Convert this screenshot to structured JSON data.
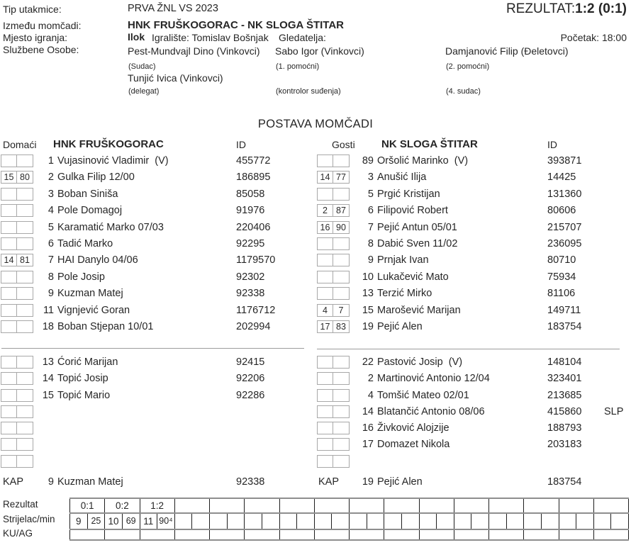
{
  "meta": {
    "labels": {
      "tip": "Tip utakmice:",
      "between": "Između momčadi:",
      "place": "Mjesto igranja:",
      "officials": "Službene Osobe:"
    },
    "tip_value": "PRVA ŽNL VS 2023",
    "teams_value": "HNK FRUŠKOGORAC - NK SLOGA ŠTITAR",
    "place_value": "Ilok",
    "stadium": "Igralište: Tomislav Bošnjak",
    "spectators_label": "Gledatelja:",
    "kickoff": "Početak: 18:00",
    "result_label": "REZULTAT:",
    "result_value": "1:2 (0:1)"
  },
  "officials": {
    "sudac_name": "Pest-Mundvajl Dino (Vinkovci)",
    "sudac_role": "(Sudac)",
    "pom1_name": "Sabo Igor (Vinkovci)",
    "pom1_role": "(1. pomoćni)",
    "pom2_name": "Damjanović Filip (Đeletovci)",
    "pom2_role": "(2. pomoćni)",
    "delegat_name": "Tunjić Ivica (Vinkovci)",
    "delegat_role": "(delegat)",
    "kontrolor_role": "(kontrolor suđenja)",
    "sudac4_role": "(4. sudac)"
  },
  "lineup": {
    "title": "POSTAVA MOMČADI",
    "home": {
      "side_label": "Domaći",
      "team_name": "HNK FRUŠKOGORAC",
      "id_label": "ID",
      "starters": [
        [
          "",
          "",
          "1",
          "Vujasinović Vladimir  (V)",
          "455772"
        ],
        [
          "15",
          "80",
          "2",
          "Gulka Filip 12/00",
          "186895"
        ],
        [
          "",
          "",
          "3",
          "Boban Siniša",
          "85058"
        ],
        [
          "",
          "",
          "4",
          "Pole Domagoj",
          "91976"
        ],
        [
          "",
          "",
          "5",
          "Karamatić Marko 07/03",
          "220406"
        ],
        [
          "",
          "",
          "6",
          "Tadić Marko",
          "92295"
        ],
        [
          "14",
          "81",
          "7",
          "HAI Danylo 04/06",
          "1179570"
        ],
        [
          "",
          "",
          "8",
          "Pole Josip",
          "92302"
        ],
        [
          "",
          "",
          "9",
          "Kuzman Matej",
          "92338"
        ],
        [
          "",
          "",
          "11",
          "Vignjević Goran",
          "1176712"
        ],
        [
          "",
          "",
          "18",
          "Boban Stjepan 10/01",
          "202994"
        ]
      ],
      "bench": [
        [
          "",
          "",
          "13",
          "Ćorić Marijan",
          "92415"
        ],
        [
          "",
          "",
          "14",
          "Topić Josip",
          "92206"
        ],
        [
          "",
          "",
          "15",
          "Topić Mario",
          "92286"
        ],
        [
          "",
          "",
          "",
          "",
          ""
        ],
        [
          "",
          "",
          "",
          "",
          ""
        ],
        [
          "",
          "",
          "",
          "",
          ""
        ],
        [
          "",
          "",
          "",
          "",
          ""
        ]
      ],
      "kap_label": "KAP",
      "kap": [
        "9",
        "Kuzman Matej",
        "92338"
      ]
    },
    "away": {
      "side_label": "Gosti",
      "team_name": "NK SLOGA ŠTITAR",
      "id_label": "ID",
      "starters": [
        [
          "",
          "",
          "89",
          "Oršolić Marinko  (V)",
          "393871"
        ],
        [
          "14",
          "77",
          "3",
          "Anušić Ilija",
          "14425"
        ],
        [
          "",
          "",
          "5",
          "Prgić Kristijan",
          "131360"
        ],
        [
          "2",
          "87",
          "6",
          "Filipović Robert",
          "80606"
        ],
        [
          "16",
          "90",
          "7",
          "Pejić Antun 05/01",
          "215707"
        ],
        [
          "",
          "",
          "8",
          "Dabić Sven 11/02",
          "236095"
        ],
        [
          "",
          "",
          "9",
          "Prnjak Ivan",
          "80710"
        ],
        [
          "",
          "",
          "10",
          "Lukačević Mato",
          "75934"
        ],
        [
          "",
          "",
          "13",
          "Terzić Mirko",
          "81106"
        ],
        [
          "4",
          "7",
          "15",
          "Marošević Marijan",
          "149711"
        ],
        [
          "17",
          "83",
          "19",
          "Pejić Alen",
          "183754"
        ]
      ],
      "bench": [
        [
          "",
          "",
          "22",
          "Pastović Josip  (V)",
          "148104"
        ],
        [
          "",
          "",
          "2",
          "Martinović Antonio 12/04",
          "323401"
        ],
        [
          "",
          "",
          "4",
          "Tomšić Mateo 02/01",
          "213685"
        ],
        [
          "",
          "",
          "14",
          "Blatančić Antonio 08/06",
          "415860",
          "SLP"
        ],
        [
          "",
          "",
          "16",
          "Živković Alojzije",
          "188793"
        ],
        [
          "",
          "",
          "17",
          "Domazet Nikola",
          "203183"
        ],
        [
          "",
          "",
          "",
          "",
          ""
        ]
      ],
      "kap_label": "KAP",
      "kap": [
        "19",
        "Pejić Alen",
        "183754"
      ]
    }
  },
  "score_table": {
    "row_labels": [
      "Rezultat",
      "Strijelac/min",
      "KU/AG"
    ],
    "columns": 16,
    "results": [
      "0:1",
      "0:2",
      "1:2"
    ],
    "scorers": [
      [
        "9",
        "25"
      ],
      [
        "10",
        "69"
      ],
      [
        "11",
        "90⁴"
      ]
    ]
  }
}
